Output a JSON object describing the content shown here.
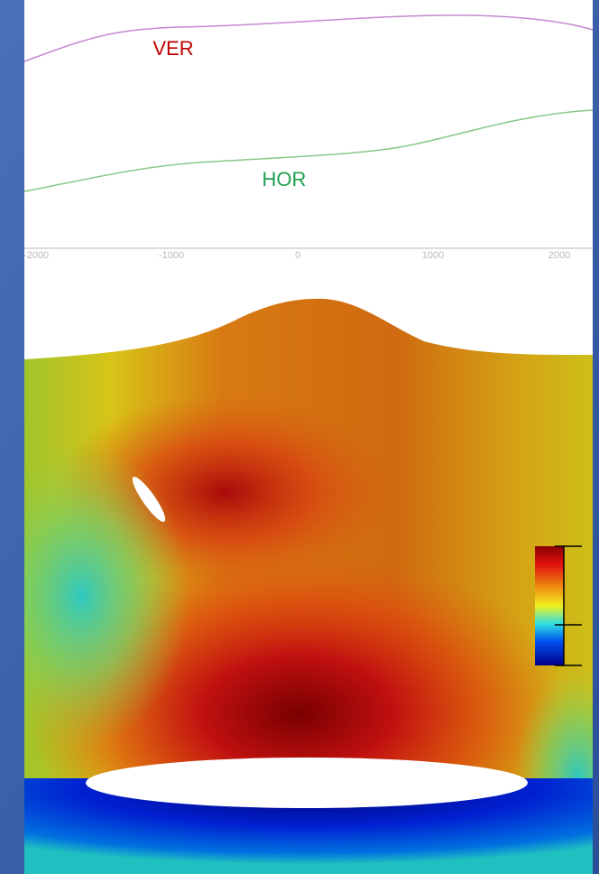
{
  "curve_labels": {
    "ver": "VER",
    "hor": "HOR"
  },
  "axis_ticks": [
    "-2000",
    "-1000",
    "0",
    "1000",
    "2000"
  ]
}
